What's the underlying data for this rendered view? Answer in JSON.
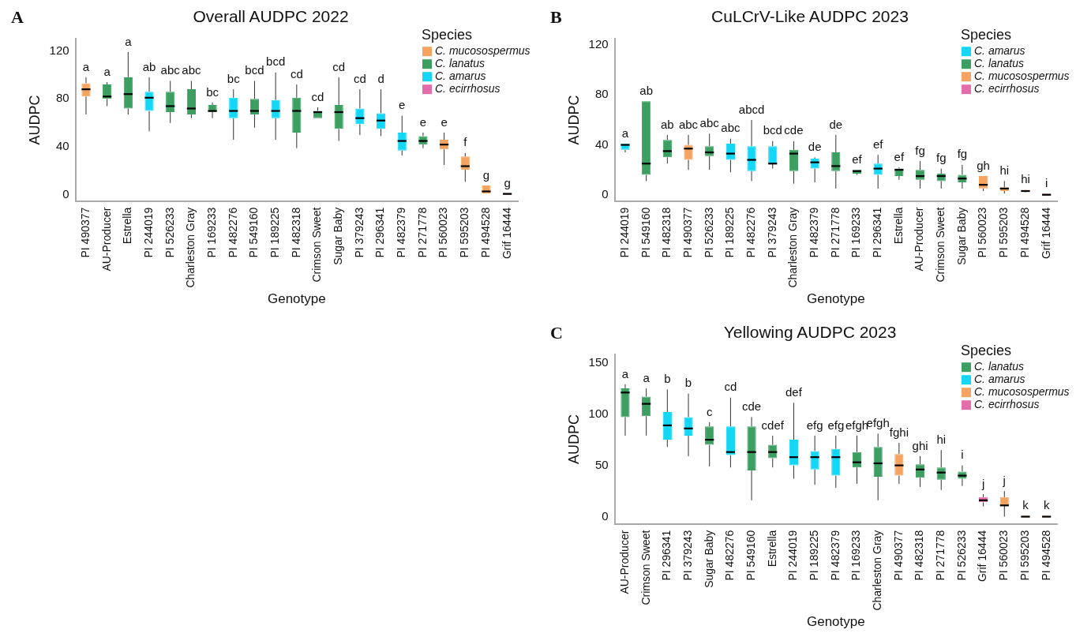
{
  "chart_data": [
    {
      "type": "box",
      "title": "Overall AUDPC 2022",
      "xlabel": "Genotype",
      "ylabel": "AUDPC",
      "legend_title": "Species",
      "legend": "top right",
      "ylim": [
        -5,
        130
      ],
      "yticks": [
        0,
        40,
        80,
        120
      ],
      "categories": [
        "PI 490377",
        "AU-Producer",
        "Estrella",
        "PI 244019",
        "PI 526233",
        "Charleston Gray",
        "PI 169233",
        "PI 482276",
        "PI 549160",
        "PI 189225",
        "PI 482318",
        "Crimson Sweet",
        "Sugar Baby",
        "PI 379243",
        "PI 296341",
        "PI 482379",
        "PI 271778",
        "PI 560023",
        "PI 595203",
        "PI 494528",
        "Grif 16444"
      ],
      "series": [
        {
          "name": "C. mucosospermus",
          "color": "#f4a460",
          "boxes": [
            {
              "low": 67,
              "q1": 82,
              "median": 88,
              "q3": 93,
              "high": 98
            },
            null,
            null,
            null,
            null,
            null,
            null,
            null,
            null,
            null,
            null,
            null,
            null,
            null,
            null,
            null,
            null,
            {
              "low": 25,
              "q1": 38,
              "median": 42,
              "q3": 46,
              "high": 52
            },
            {
              "low": 11,
              "q1": 21,
              "median": 24,
              "q3": 32,
              "high": 35
            },
            {
              "low": 1,
              "q1": 1,
              "median": 3,
              "q3": 8,
              "high": 8
            },
            null
          ],
          "value_labels": [
            "a",
            null,
            null,
            null,
            null,
            null,
            null,
            null,
            null,
            null,
            null,
            null,
            null,
            null,
            null,
            null,
            null,
            "e",
            "f",
            "g",
            null
          ]
        },
        {
          "name": "C. lanatus",
          "color": "#3c9e60",
          "boxes": [
            null,
            {
              "low": 74,
              "q1": 80,
              "median": 82,
              "q3": 92,
              "high": 94
            },
            {
              "low": 67,
              "q1": 72,
              "median": 84,
              "q3": 98,
              "high": 119
            },
            null,
            {
              "low": 60,
              "q1": 69,
              "median": 74,
              "q3": 86,
              "high": 95
            },
            {
              "low": 64,
              "q1": 67,
              "median": 72,
              "q3": 88,
              "high": 95
            },
            {
              "low": 64,
              "q1": 69,
              "median": 70,
              "q3": 75,
              "high": 77
            },
            null,
            {
              "low": 56,
              "q1": 67,
              "median": 70,
              "q3": 80,
              "high": 95
            },
            null,
            {
              "low": 39,
              "q1": 52,
              "median": 70,
              "q3": 81,
              "high": 92
            },
            {
              "low": 64,
              "q1": 64,
              "median": 69,
              "q3": 70,
              "high": 73
            },
            {
              "low": 45,
              "q1": 55,
              "median": 69,
              "q3": 75,
              "high": 98
            },
            null,
            null,
            null,
            {
              "low": 39,
              "q1": 42,
              "median": 45,
              "q3": 49,
              "high": 52
            },
            null,
            null,
            null,
            null
          ],
          "value_labels": [
            null,
            "a",
            "a",
            null,
            "abc",
            "abc",
            "bc",
            null,
            "bcd",
            null,
            "cd",
            "cd",
            "cd",
            null,
            null,
            null,
            "e",
            null,
            null,
            null,
            null
          ]
        },
        {
          "name": "C. amarus",
          "color": "#14d6f5",
          "boxes": [
            null,
            null,
            null,
            {
              "low": 53,
              "q1": 70,
              "median": 81,
              "q3": 86,
              "high": 98
            },
            null,
            null,
            null,
            {
              "low": 46,
              "q1": 64,
              "median": 70,
              "q3": 81,
              "high": 88
            },
            null,
            {
              "low": 46,
              "q1": 64,
              "median": 70,
              "q3": 79,
              "high": 102
            },
            null,
            null,
            null,
            {
              "low": 50,
              "q1": 59,
              "median": 64,
              "q3": 72,
              "high": 88
            },
            {
              "low": 49,
              "q1": 55,
              "median": 62,
              "q3": 68,
              "high": 88
            },
            {
              "low": 33,
              "q1": 37,
              "median": 45,
              "q3": 52,
              "high": 66
            },
            null,
            null,
            null,
            null,
            null
          ],
          "value_labels": [
            null,
            null,
            null,
            "ab",
            null,
            null,
            null,
            "bc",
            null,
            "bcd",
            null,
            null,
            null,
            "cd",
            "d",
            "e",
            null,
            null,
            null,
            null,
            null
          ]
        },
        {
          "name": "C. ecirrhosus",
          "color": "#e46ca8",
          "boxes": [
            null,
            null,
            null,
            null,
            null,
            null,
            null,
            null,
            null,
            null,
            null,
            null,
            null,
            null,
            null,
            null,
            null,
            null,
            null,
            null,
            {
              "low": 0,
              "q1": 0,
              "median": 1,
              "q3": 1,
              "high": 1
            }
          ],
          "value_labels": [
            null,
            null,
            null,
            null,
            null,
            null,
            null,
            null,
            null,
            null,
            null,
            null,
            null,
            null,
            null,
            null,
            null,
            null,
            null,
            null,
            "g"
          ]
        }
      ],
      "annotations": [
        "A"
      ]
    },
    {
      "type": "box",
      "title": "CuLCrV-Like AUDPC 2023",
      "xlabel": "Genotype",
      "ylabel": "AUDPC",
      "legend_title": "Species",
      "legend": "top right",
      "ylim": [
        -5,
        125
      ],
      "yticks": [
        0,
        40,
        80,
        120
      ],
      "categories": [
        "PI 244019",
        "PI 549160",
        "PI 482318",
        "PI 490377",
        "PI 526233",
        "PI 189225",
        "PI 482276",
        "PI 379243",
        "Charleston Gray",
        "PI 482379",
        "PI 271778",
        "PI 169233",
        "PI 296341",
        "Estrella",
        "AU-Producer",
        "Crimson Sweet",
        "Sugar Baby",
        "PI 560023",
        "PI 595203",
        "PI 494528",
        "Grif 16444"
      ],
      "series": [
        {
          "name": "C. amarus",
          "color": "#14d6f5",
          "boxes": [
            {
              "low": 34,
              "q1": 36,
              "median": 40,
              "q3": 41,
              "high": 41
            },
            null,
            null,
            null,
            null,
            {
              "low": 18,
              "q1": 28,
              "median": 33,
              "q3": 41,
              "high": 45
            },
            {
              "low": 11,
              "q1": 19,
              "median": 28,
              "q3": 39,
              "high": 60
            },
            {
              "low": 21,
              "q1": 25,
              "median": 25,
              "q3": 39,
              "high": 43
            },
            null,
            {
              "low": 10,
              "q1": 21,
              "median": 26,
              "q3": 29,
              "high": 30
            },
            null,
            null,
            {
              "low": 5,
              "q1": 16,
              "median": 21,
              "q3": 25,
              "high": 32
            },
            null,
            null,
            null,
            null,
            null,
            null,
            null,
            null
          ],
          "value_labels": [
            "a",
            null,
            null,
            null,
            null,
            "abc",
            "abcd",
            "bcd",
            null,
            "de",
            null,
            null,
            "ef",
            null,
            null,
            null,
            null,
            null,
            null,
            null,
            null
          ]
        },
        {
          "name": "C. lanatus",
          "color": "#3c9e60",
          "boxes": [
            null,
            {
              "low": 11,
              "q1": 16,
              "median": 25,
              "q3": 75,
              "high": 75
            },
            {
              "low": 25,
              "q1": 30,
              "median": 35,
              "q3": 44,
              "high": 48
            },
            null,
            {
              "low": 20,
              "q1": 31,
              "median": 34,
              "q3": 39,
              "high": 49
            },
            null,
            null,
            null,
            {
              "low": 9,
              "q1": 19,
              "median": 33,
              "q3": 36,
              "high": 43
            },
            null,
            {
              "low": 5,
              "q1": 19,
              "median": 23,
              "q3": 34,
              "high": 48
            },
            {
              "low": 16,
              "q1": 17,
              "median": 19,
              "q3": 20,
              "high": 20
            },
            null,
            {
              "low": 12,
              "q1": 15,
              "median": 20,
              "q3": 21,
              "high": 22
            },
            {
              "low": 5,
              "q1": 12,
              "median": 15,
              "q3": 20,
              "high": 27
            },
            {
              "low": 5,
              "q1": 11,
              "median": 15,
              "q3": 17,
              "high": 21
            },
            {
              "low": 5,
              "q1": 10,
              "median": 13,
              "q3": 16,
              "high": 24
            },
            null,
            null,
            null,
            null
          ],
          "value_labels": [
            null,
            "ab",
            "ab",
            null,
            "abc",
            null,
            null,
            null,
            "cde",
            null,
            "de",
            "ef",
            null,
            "ef",
            "fg",
            "fg",
            "fg",
            null,
            null,
            null,
            null
          ]
        },
        {
          "name": "C. mucosospermus",
          "color": "#f4a460",
          "boxes": [
            null,
            null,
            null,
            {
              "low": 20,
              "q1": 28,
              "median": 37,
              "q3": 40,
              "high": 48
            },
            null,
            null,
            null,
            null,
            null,
            null,
            null,
            null,
            null,
            null,
            null,
            null,
            null,
            {
              "low": 3,
              "q1": 5,
              "median": 8,
              "q3": 15,
              "high": 15
            },
            {
              "low": 1,
              "q1": 3,
              "median": 5,
              "q3": 6,
              "high": 11
            },
            {
              "low": 2,
              "q1": 3,
              "median": 3,
              "q3": 4,
              "high": 4
            },
            null
          ],
          "value_labels": [
            null,
            null,
            null,
            "abc",
            null,
            null,
            null,
            null,
            null,
            null,
            null,
            null,
            null,
            null,
            null,
            null,
            null,
            "gh",
            "hi",
            "hi",
            null
          ]
        },
        {
          "name": "C. ecirrhosus",
          "color": "#e46ca8",
          "boxes": [
            null,
            null,
            null,
            null,
            null,
            null,
            null,
            null,
            null,
            null,
            null,
            null,
            null,
            null,
            null,
            null,
            null,
            null,
            null,
            null,
            {
              "low": 0,
              "q1": 0,
              "median": 0,
              "q3": 1,
              "high": 1
            }
          ],
          "value_labels": [
            null,
            null,
            null,
            null,
            null,
            null,
            null,
            null,
            null,
            null,
            null,
            null,
            null,
            null,
            null,
            null,
            null,
            null,
            null,
            null,
            "i"
          ]
        }
      ],
      "annotations": [
        "B"
      ]
    },
    {
      "type": "box",
      "title": "Yellowing AUDPC 2023",
      "xlabel": "Genotype",
      "ylabel": "AUDPC",
      "legend_title": "Species",
      "legend": "top right",
      "ylim": [
        -7,
        158
      ],
      "yticks": [
        0,
        50,
        100,
        150
      ],
      "categories": [
        "AU-Producer",
        "Crimson Sweet",
        "PI 296341",
        "PI 379243",
        "Sugar Baby",
        "PI 482276",
        "PI 549160",
        "Estrella",
        "PI 244019",
        "PI 189225",
        "PI 482379",
        "PI 169233",
        "Charleston Gray",
        "PI 490377",
        "PI 482318",
        "PI 271778",
        "PI 526233",
        "Grif 16444",
        "PI 560023",
        "PI 595203",
        "PI 494528"
      ],
      "series": [
        {
          "name": "C. lanatus",
          "color": "#3c9e60",
          "boxes": [
            {
              "low": 79,
              "q1": 97,
              "median": 121,
              "q3": 125,
              "high": 129
            },
            {
              "low": 79,
              "q1": 98,
              "median": 110,
              "q3": 117,
              "high": 125
            },
            null,
            null,
            {
              "low": 49,
              "q1": 70,
              "median": 75,
              "q3": 88,
              "high": 92
            },
            null,
            {
              "low": 16,
              "q1": 45,
              "median": 63,
              "q3": 88,
              "high": 97
            },
            {
              "low": 48,
              "q1": 57,
              "median": 63,
              "q3": 70,
              "high": 79
            },
            null,
            null,
            null,
            {
              "low": 32,
              "q1": 48,
              "median": 53,
              "q3": 63,
              "high": 79
            },
            {
              "low": 16,
              "q1": 39,
              "median": 52,
              "q3": 68,
              "high": 81
            },
            null,
            {
              "low": 29,
              "q1": 38,
              "median": 46,
              "q3": 51,
              "high": 59
            },
            {
              "low": 26,
              "q1": 36,
              "median": 43,
              "q3": 48,
              "high": 65
            },
            {
              "low": 30,
              "q1": 37,
              "median": 40,
              "q3": 44,
              "high": 50
            },
            null,
            null,
            null,
            null
          ],
          "value_labels": [
            "a",
            "a",
            null,
            null,
            "c",
            null,
            "cde",
            "cdef",
            null,
            null,
            null,
            "efgh",
            "efgh",
            null,
            "ghi",
            "hi",
            "i",
            null,
            null,
            null,
            null
          ]
        },
        {
          "name": "C. amarus",
          "color": "#14d6f5",
          "boxes": [
            null,
            null,
            {
              "low": 68,
              "q1": 75,
              "median": 89,
              "q3": 102,
              "high": 124
            },
            {
              "low": 59,
              "q1": 79,
              "median": 86,
              "q3": 97,
              "high": 120
            },
            null,
            {
              "low": 48,
              "q1": 60,
              "median": 63,
              "q3": 88,
              "high": 116
            },
            null,
            null,
            {
              "low": 37,
              "q1": 50,
              "median": 58,
              "q3": 75,
              "high": 111
            },
            {
              "low": 31,
              "q1": 46,
              "median": 58,
              "q3": 64,
              "high": 79
            },
            {
              "low": 28,
              "q1": 40,
              "median": 58,
              "q3": 66,
              "high": 79
            },
            null,
            null,
            null,
            null,
            null,
            null,
            null,
            null,
            null,
            null
          ],
          "value_labels": [
            null,
            null,
            "b",
            "b",
            null,
            "cd",
            null,
            null,
            "def",
            "efg",
            "efg",
            null,
            null,
            null,
            null,
            null,
            null,
            null,
            null,
            null,
            null
          ]
        },
        {
          "name": "C. mucosospermus",
          "color": "#f4a460",
          "boxes": [
            null,
            null,
            null,
            null,
            null,
            null,
            null,
            null,
            null,
            null,
            null,
            null,
            null,
            {
              "low": 32,
              "q1": 40,
              "median": 50,
              "q3": 61,
              "high": 72
            },
            null,
            null,
            null,
            null,
            {
              "low": 0,
              "q1": 11,
              "median": 11,
              "q3": 19,
              "high": 25
            },
            {
              "low": 0,
              "q1": 0,
              "median": 0,
              "q3": 1,
              "high": 1
            },
            {
              "low": 0,
              "q1": 0,
              "median": 0,
              "q3": 1,
              "high": 1
            }
          ],
          "value_labels": [
            null,
            null,
            null,
            null,
            null,
            null,
            null,
            null,
            null,
            null,
            null,
            null,
            null,
            "fghi",
            null,
            null,
            null,
            null,
            "j",
            "k",
            "k"
          ]
        },
        {
          "name": "C. ecirrhosus",
          "color": "#e46ca8",
          "boxes": [
            null,
            null,
            null,
            null,
            null,
            null,
            null,
            null,
            null,
            null,
            null,
            null,
            null,
            null,
            null,
            null,
            null,
            {
              "low": 10,
              "q1": 14,
              "median": 16,
              "q3": 19,
              "high": 22
            },
            null,
            null,
            null
          ],
          "value_labels": [
            null,
            null,
            null,
            null,
            null,
            null,
            null,
            null,
            null,
            null,
            null,
            null,
            null,
            null,
            null,
            null,
            null,
            "j",
            null,
            null,
            null
          ]
        }
      ],
      "annotations": [
        "C"
      ]
    }
  ]
}
